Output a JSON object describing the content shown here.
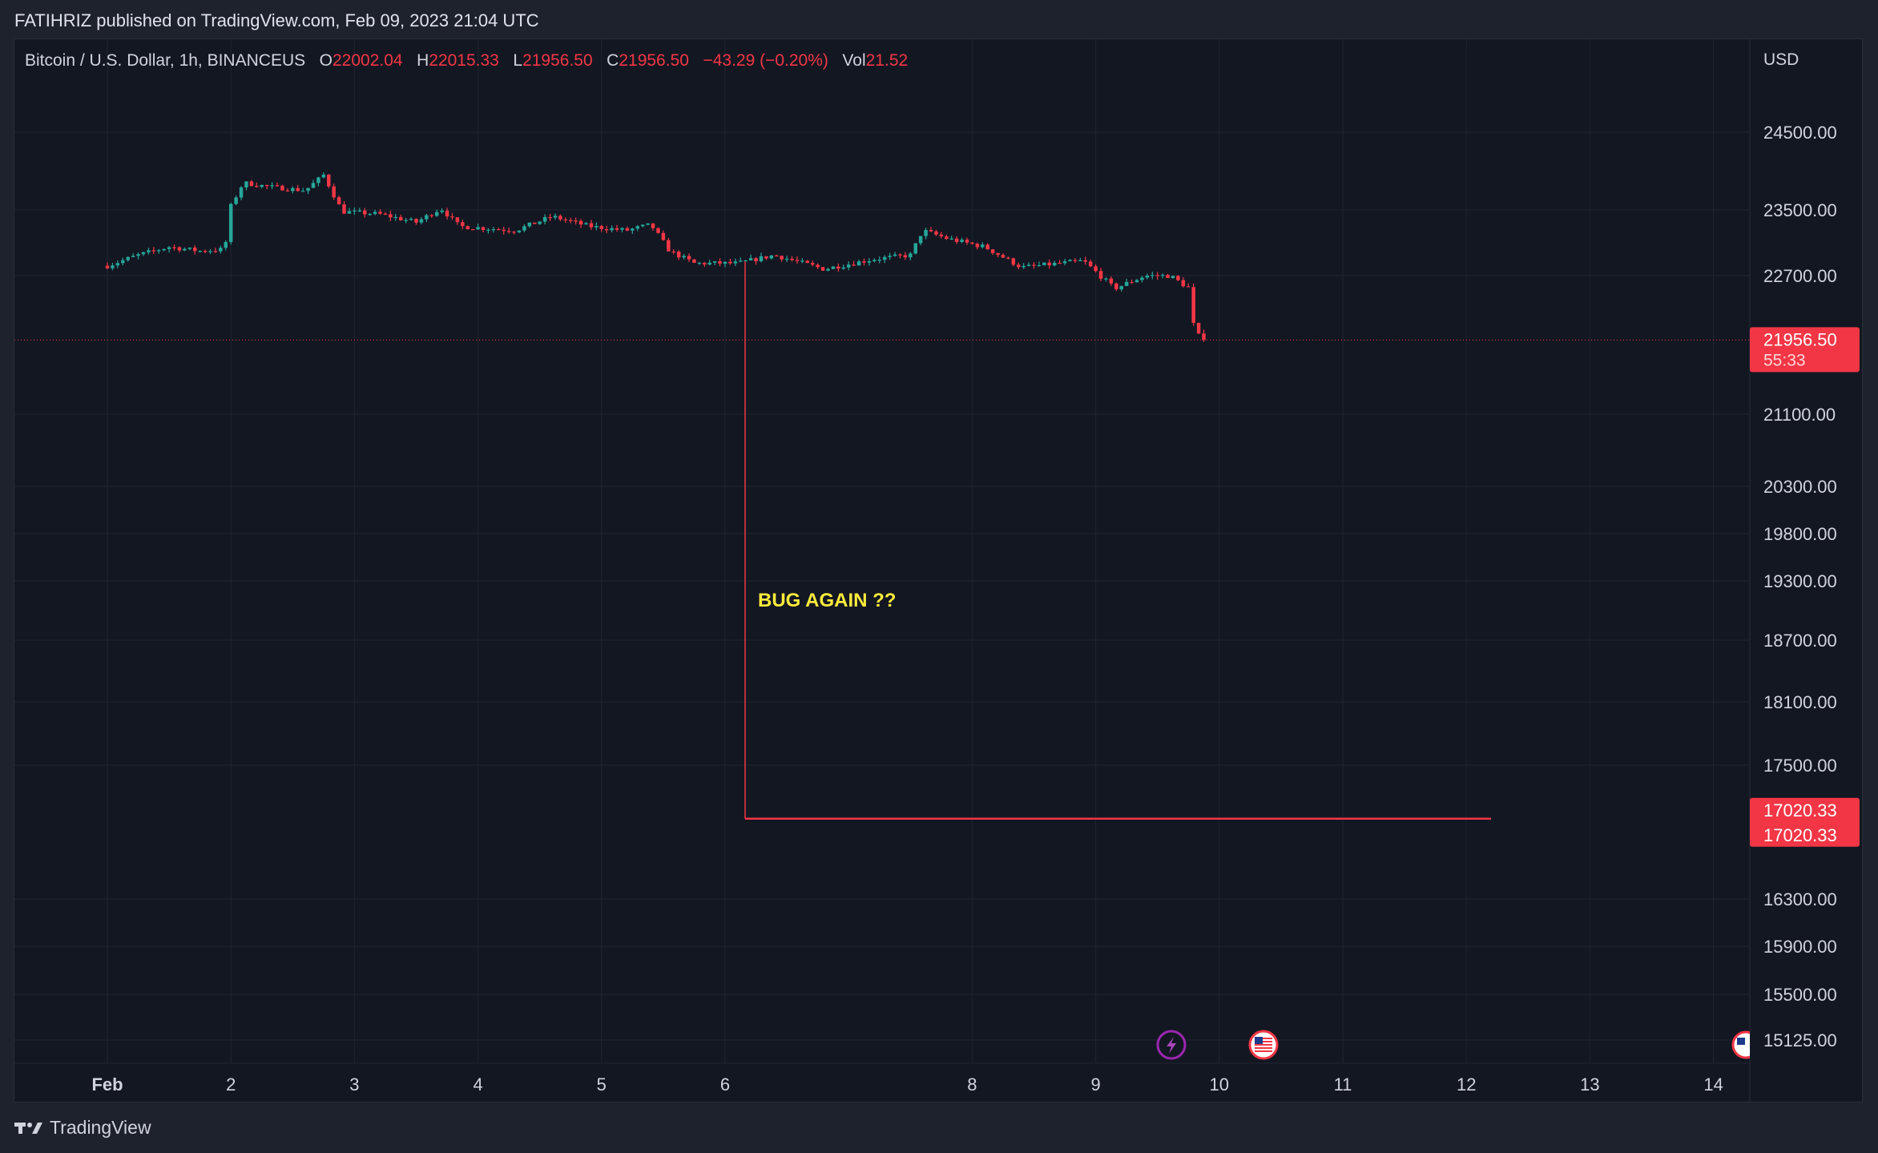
{
  "header": {
    "published": "FATIHRIZ published on TradingView.com, Feb 09, 2023 21:04 UTC"
  },
  "legend": {
    "symbol": "Bitcoin / U.S. Dollar, 1h, BINANCEUS",
    "o_label": "O",
    "o_value": "22002.04",
    "h_label": "H",
    "h_value": "22015.33",
    "l_label": "L",
    "l_value": "21956.50",
    "c_label": "C",
    "c_value": "21956.50",
    "change": "−43.29 (−0.20%)",
    "vol_label": "Vol",
    "vol_value": "21.52"
  },
  "footer": {
    "brand": "TradingView"
  },
  "colors": {
    "up": "#26a69a",
    "down": "#f23645",
    "annotation": "#ffeb3b",
    "background": "#131722"
  },
  "chart_data": {
    "type": "candlestick",
    "symbol": "Bitcoin / U.S. Dollar",
    "interval": "1h",
    "exchange": "BINANCEUS",
    "currency": "USD",
    "current_price": 21956.5,
    "countdown": "55:33",
    "annotation_text": "BUG AGAIN ??",
    "horizontal_line_price": 17020.33,
    "horizontal_line_labels": [
      "17020.33",
      "17020.33"
    ],
    "price_ticks": [
      "24500.00",
      "23500.00",
      "22700.00",
      "21100.00",
      "20300.00",
      "19800.00",
      "19300.00",
      "18700.00",
      "18100.00",
      "17500.00",
      "16300.00",
      "15900.00",
      "15500.00",
      "15125.00"
    ],
    "price_tick_values": [
      24500,
      23500,
      22700,
      21100,
      20300,
      19800,
      19300,
      18700,
      18100,
      17500,
      16300,
      15900,
      15500,
      15125
    ],
    "time_ticks": [
      "Feb",
      "2",
      "3",
      "4",
      "5",
      "6",
      "8",
      "9",
      "10",
      "11",
      "12",
      "13",
      "14"
    ],
    "time_tick_days": [
      1,
      2,
      3,
      4,
      5,
      6,
      8,
      9,
      10,
      11,
      12,
      13,
      14
    ],
    "series_path": [
      [
        1.0,
        22820
      ],
      [
        1.25,
        22950
      ],
      [
        1.5,
        23050
      ],
      [
        1.75,
        23000
      ],
      [
        1.95,
        23020
      ],
      [
        2.0,
        23550
      ],
      [
        2.1,
        23850
      ],
      [
        2.3,
        23800
      ],
      [
        2.6,
        23750
      ],
      [
        2.75,
        23950
      ],
      [
        2.9,
        23480
      ],
      [
        3.2,
        23450
      ],
      [
        3.5,
        23350
      ],
      [
        3.7,
        23520
      ],
      [
        3.85,
        23300
      ],
      [
        4.3,
        23250
      ],
      [
        4.6,
        23420
      ],
      [
        4.9,
        23300
      ],
      [
        5.2,
        23250
      ],
      [
        5.4,
        23320
      ],
      [
        5.55,
        23000
      ],
      [
        5.75,
        22850
      ],
      [
        6.1,
        22850
      ],
      [
        6.4,
        22950
      ],
      [
        6.8,
        22780
      ],
      [
        7.2,
        22900
      ],
      [
        7.5,
        22950
      ],
      [
        7.6,
        23250
      ],
      [
        7.8,
        23150
      ],
      [
        8.1,
        23050
      ],
      [
        8.4,
        22800
      ],
      [
        8.9,
        22880
      ],
      [
        9.15,
        22550
      ],
      [
        9.4,
        22700
      ],
      [
        9.6,
        22700
      ],
      [
        9.75,
        22560
      ],
      [
        9.8,
        22050
      ],
      [
        9.87,
        21956.5
      ]
    ]
  }
}
